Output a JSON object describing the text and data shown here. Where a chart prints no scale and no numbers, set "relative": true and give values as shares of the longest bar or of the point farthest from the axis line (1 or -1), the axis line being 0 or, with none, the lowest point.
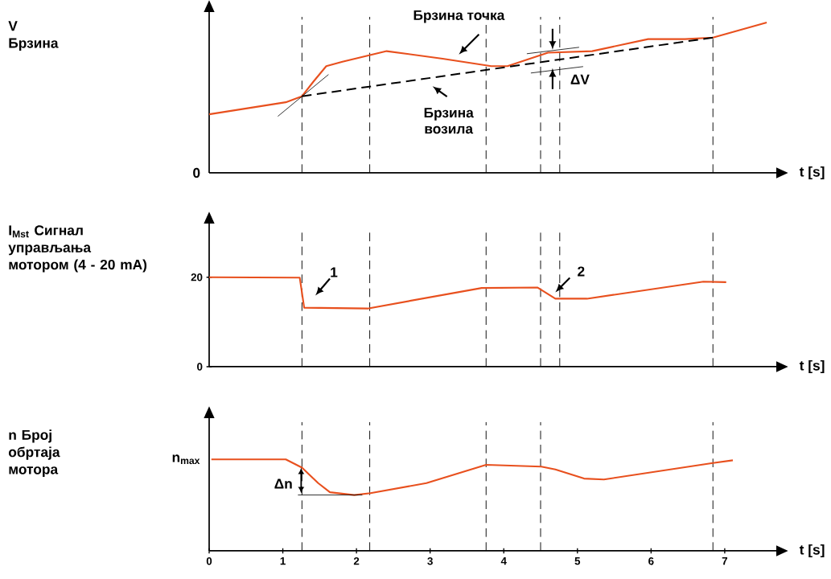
{
  "chart_data": [
    {
      "type": "line",
      "ylabel": "V Брзина",
      "xlabel": "t [s]",
      "relative": true,
      "xlim": [
        0,
        7.7
      ],
      "tick_labels": false,
      "series": [
        {
          "color": "#e8501e",
          "x": [
            0,
            1.04,
            1.26,
            1.42,
            1.59,
            1.81,
            2.41,
            3.17,
            3.83,
            4.05,
            4.6,
            5.2,
            5.96,
            6.46,
            6.84,
            7.57
          ],
          "values": [
            0.39,
            0.47,
            0.51,
            0.61,
            0.71,
            0.74,
            0.81,
            0.76,
            0.71,
            0.71,
            0.8,
            0.81,
            0.89,
            0.89,
            0.9,
            1.0
          ]
        },
        {
          "color": "#000000",
          "line_style": "dashed",
          "x": [
            1.26,
            6.84
          ],
          "values": [
            0.51,
            0.9
          ]
        }
      ],
      "ref_lines": [
        {
          "axis": "x",
          "value": 1.26
        },
        {
          "axis": "x",
          "value": 2.18
        },
        {
          "axis": "x",
          "value": 3.76
        },
        {
          "axis": "x",
          "value": 4.5
        },
        {
          "axis": "x",
          "value": 4.76
        },
        {
          "axis": "x",
          "value": 6.84
        }
      ],
      "annotations": [
        "0",
        {
          "text": "Брзина точка",
          "x": 3.39,
          "y": 0.74
        },
        {
          "text": "Брзина возила",
          "x": 3.0,
          "y": 0.63
        },
        {
          "text": "ΔV",
          "x": 4.75,
          "y": 0.75
        }
      ]
    },
    {
      "type": "line",
      "ylabel": "I$_{Mst}$ Сигнал управљања мотором (4 - 20 mA)",
      "xlabel": "t [s]",
      "xlim": [
        0,
        7.7
      ],
      "ylim": [
        0,
        32
      ],
      "yticks": [
        0,
        20
      ],
      "tick_labels": "y",
      "series": [
        {
          "color": "#e8501e",
          "x": [
            0,
            1.23,
            1.29,
            2.15,
            3.7,
            4.46,
            4.7,
            5.13,
            6.71,
            7.02
          ],
          "values": [
            20,
            19.9,
            13.2,
            13.0,
            17.6,
            17.7,
            15.2,
            15.2,
            19.0,
            18.9
          ]
        }
      ],
      "ref_lines": [
        {
          "axis": "x",
          "value": 1.26
        },
        {
          "axis": "x",
          "value": 2.18
        },
        {
          "axis": "x",
          "value": 3.76
        },
        {
          "axis": "x",
          "value": 4.5
        },
        {
          "axis": "x",
          "value": 4.76
        },
        {
          "axis": "x",
          "value": 6.84
        }
      ],
      "annotations": [
        {
          "text": "1",
          "x": 1.3,
          "y": 13.2
        },
        {
          "text": "2",
          "x": 4.7,
          "y": 15.2
        }
      ]
    },
    {
      "type": "line",
      "ylabel": "n Број обртаја мотора",
      "xlabel": "t [s]",
      "relative": true,
      "xlim": [
        0,
        7.7
      ],
      "xticks": [
        0,
        1,
        2,
        3,
        4,
        5,
        6,
        7
      ],
      "tick_labels": "x",
      "series": [
        {
          "color": "#e8501e",
          "x": [
            0.03,
            1.04,
            1.26,
            1.48,
            1.64,
            1.97,
            2.19,
            2.95,
            3.76,
            4.51,
            4.7,
            5.09,
            5.36,
            6.84,
            7.11
          ],
          "values": [
            1.0,
            1.0,
            0.91,
            0.74,
            0.64,
            0.61,
            0.63,
            0.74,
            0.94,
            0.92,
            0.89,
            0.79,
            0.78,
            0.96,
            0.99
          ]
        }
      ],
      "ref_lines": [
        {
          "axis": "x",
          "value": 1.26
        },
        {
          "axis": "x",
          "value": 2.18
        },
        {
          "axis": "x",
          "value": 3.76
        },
        {
          "axis": "x",
          "value": 4.5
        },
        {
          "axis": "x",
          "value": 6.84
        }
      ],
      "annotations": [
        "n$_{max}$",
        {
          "text": "Δn",
          "x": 1.26,
          "y": 0.76
        }
      ]
    }
  ]
}
